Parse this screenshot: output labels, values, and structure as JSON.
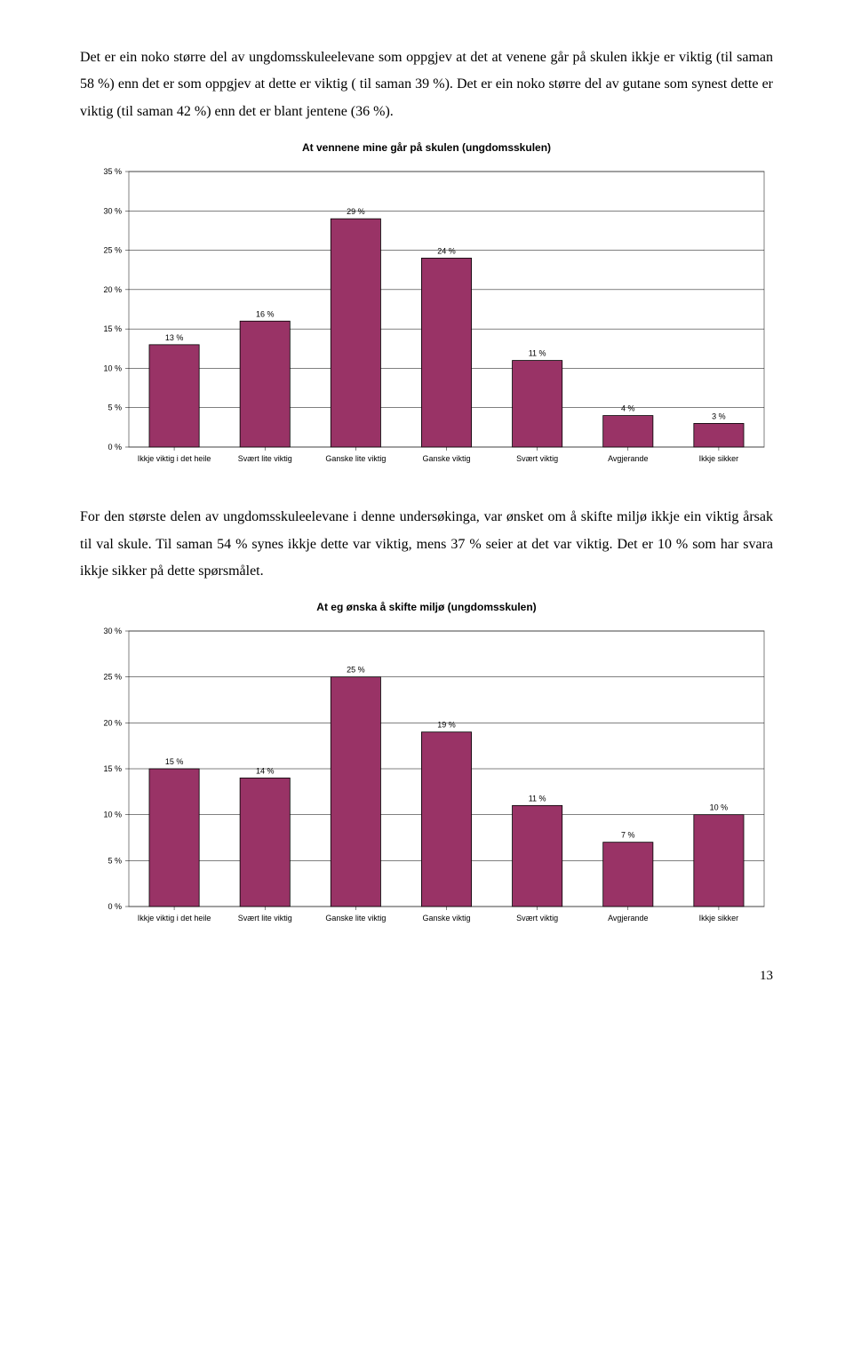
{
  "paragraphs": {
    "p1": "Det er ein noko større del av ungdomsskuleelevane som oppgjev at det at venene går på skulen ikkje er viktig (til saman 58 %) enn det er som oppgjev at dette er viktig ( til saman 39 %). Det er ein noko større del av gutane som synest dette er viktig (til saman 42 %) enn det er blant jentene (36 %).",
    "p2": "For den største delen av ungdomsskuleelevane i denne undersøkinga, var ønsket om å skifte miljø ikkje ein viktig årsak til val skule. Til saman 54 % synes ikkje dette var viktig, mens 37 % seier at det var viktig. Det er 10 % som har svara ikkje sikker på dette spørsmålet."
  },
  "chart1": {
    "type": "bar",
    "title": "At vennene mine går på skulen (ungdomsskulen)",
    "title_fontsize": 12,
    "categories": [
      "Ikkje viktig i det heile",
      "Svært lite viktig",
      "Ganske lite viktig",
      "Ganske viktig",
      "Svært viktig",
      "Avgjerande",
      "Ikkje sikker"
    ],
    "values": [
      13,
      16,
      29,
      24,
      11,
      4,
      3
    ],
    "value_labels": [
      "13 %",
      "16 %",
      "29 %",
      "24 %",
      "11 %",
      "4 %",
      "3 %"
    ],
    "bar_color": "#993366",
    "bar_border": "#000000",
    "ylim": [
      0,
      35
    ],
    "ytick_step": 5,
    "yticks": [
      "0 %",
      "5 %",
      "10 %",
      "15 %",
      "20 %",
      "25 %",
      "30 %",
      "35 %"
    ],
    "grid_color": "#000000",
    "plot_border": "#808080",
    "background": "#ffffff",
    "label_fontsize": 9,
    "axis_fontsize": 9,
    "bar_width": 0.55
  },
  "chart2": {
    "type": "bar",
    "title": "At eg ønska å skifte miljø (ungdomsskulen)",
    "title_fontsize": 12,
    "categories": [
      "Ikkje viktig i det heile",
      "Svært lite viktig",
      "Ganske lite viktig",
      "Ganske viktig",
      "Svært viktig",
      "Avgjerande",
      "Ikkje sikker"
    ],
    "values": [
      15,
      14,
      25,
      19,
      11,
      7,
      10
    ],
    "value_labels": [
      "15 %",
      "14 %",
      "25 %",
      "19 %",
      "11 %",
      "7 %",
      "10 %"
    ],
    "bar_color": "#993366",
    "bar_border": "#000000",
    "ylim": [
      0,
      30
    ],
    "ytick_step": 5,
    "yticks": [
      "0 %",
      "5 %",
      "10 %",
      "15 %",
      "20 %",
      "25 %",
      "30 %"
    ],
    "grid_color": "#000000",
    "plot_border": "#808080",
    "background": "#ffffff",
    "label_fontsize": 9,
    "axis_fontsize": 9,
    "bar_width": 0.55
  },
  "page_number": "13"
}
